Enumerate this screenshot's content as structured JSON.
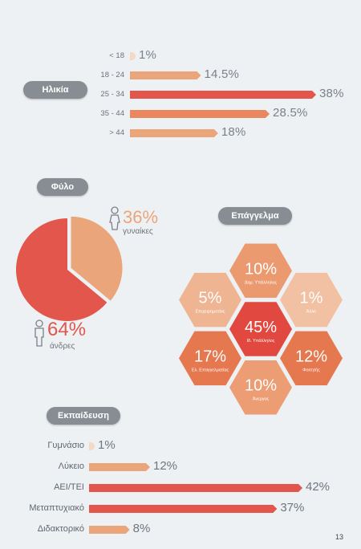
{
  "sections": {
    "age_title": "Ηλικία",
    "gender_title": "Φύλο",
    "occupation_title": "Επάγγελμα",
    "education_title": "Εκπαίδευση"
  },
  "page_number": "13",
  "colors": {
    "light": "#eaa57a",
    "mid": "#e9875f",
    "strong": "#e2564b",
    "tiny": "#f4d9c4",
    "pill": "#878d93"
  },
  "chart_data": [
    {
      "type": "bar",
      "title": "Ηλικία",
      "categories": [
        "< 18",
        "18 - 24",
        "25 - 34",
        "35 - 44",
        "> 44"
      ],
      "values": [
        1,
        14.5,
        38,
        28.5,
        18
      ],
      "value_labels": [
        "1%",
        "14.5%",
        "38%",
        "28.5%",
        "18%"
      ]
    },
    {
      "type": "pie",
      "title": "Φύλο",
      "categories": [
        "γυναίκες",
        "άνδρες"
      ],
      "values": [
        36,
        64
      ],
      "value_labels": [
        "36%",
        "64%"
      ]
    },
    {
      "type": "table",
      "title": "Επάγγελμα",
      "categories": [
        "Δημ. Υπάλληλος",
        "Επιχειρηματίας",
        "Ιδ. Υπάλληλος",
        "Άλλο",
        "Ελ. Επαγγελματίας",
        "Φοιτητής",
        "Άνεργος"
      ],
      "values": [
        10,
        5,
        45,
        1,
        17,
        12,
        10
      ],
      "value_labels": [
        "10%",
        "5%",
        "45%",
        "1%",
        "17%",
        "12%",
        "10%"
      ]
    },
    {
      "type": "bar",
      "title": "Εκπαίδευση",
      "categories": [
        "Γυμνάσιο",
        "Λύκειο",
        "ΑΕΙ/ΤΕΙ",
        "Μεταπτυχιακό",
        "Διδακτορικό"
      ],
      "values": [
        1,
        12,
        42,
        37,
        8
      ],
      "value_labels": [
        "1%",
        "12%",
        "42%",
        "37%",
        "8%"
      ]
    }
  ]
}
